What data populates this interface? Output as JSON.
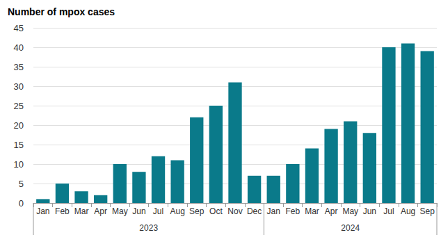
{
  "chart_data": {
    "type": "bar",
    "title": "Number of mpox cases",
    "categories": [
      "Jan",
      "Feb",
      "Mar",
      "Apr",
      "May",
      "Jun",
      "Jul",
      "Aug",
      "Sep",
      "Oct",
      "Nov",
      "Dec",
      "Jan",
      "Feb",
      "Mar",
      "Apr",
      "May",
      "Jun",
      "Jul",
      "Aug",
      "Sep"
    ],
    "values": [
      1,
      5,
      3,
      2,
      10,
      8,
      12,
      11,
      22,
      25,
      31,
      7,
      7,
      10,
      14,
      19,
      21,
      18,
      40,
      41,
      39
    ],
    "x_groups": [
      {
        "label": "2023",
        "span": 12
      },
      {
        "label": "2024",
        "span": 9
      }
    ],
    "color": "#0a7a8a",
    "ylim": [
      0,
      45
    ],
    "yticks": [
      0,
      5,
      10,
      15,
      20,
      25,
      30,
      35,
      40,
      45
    ],
    "grid": true
  }
}
